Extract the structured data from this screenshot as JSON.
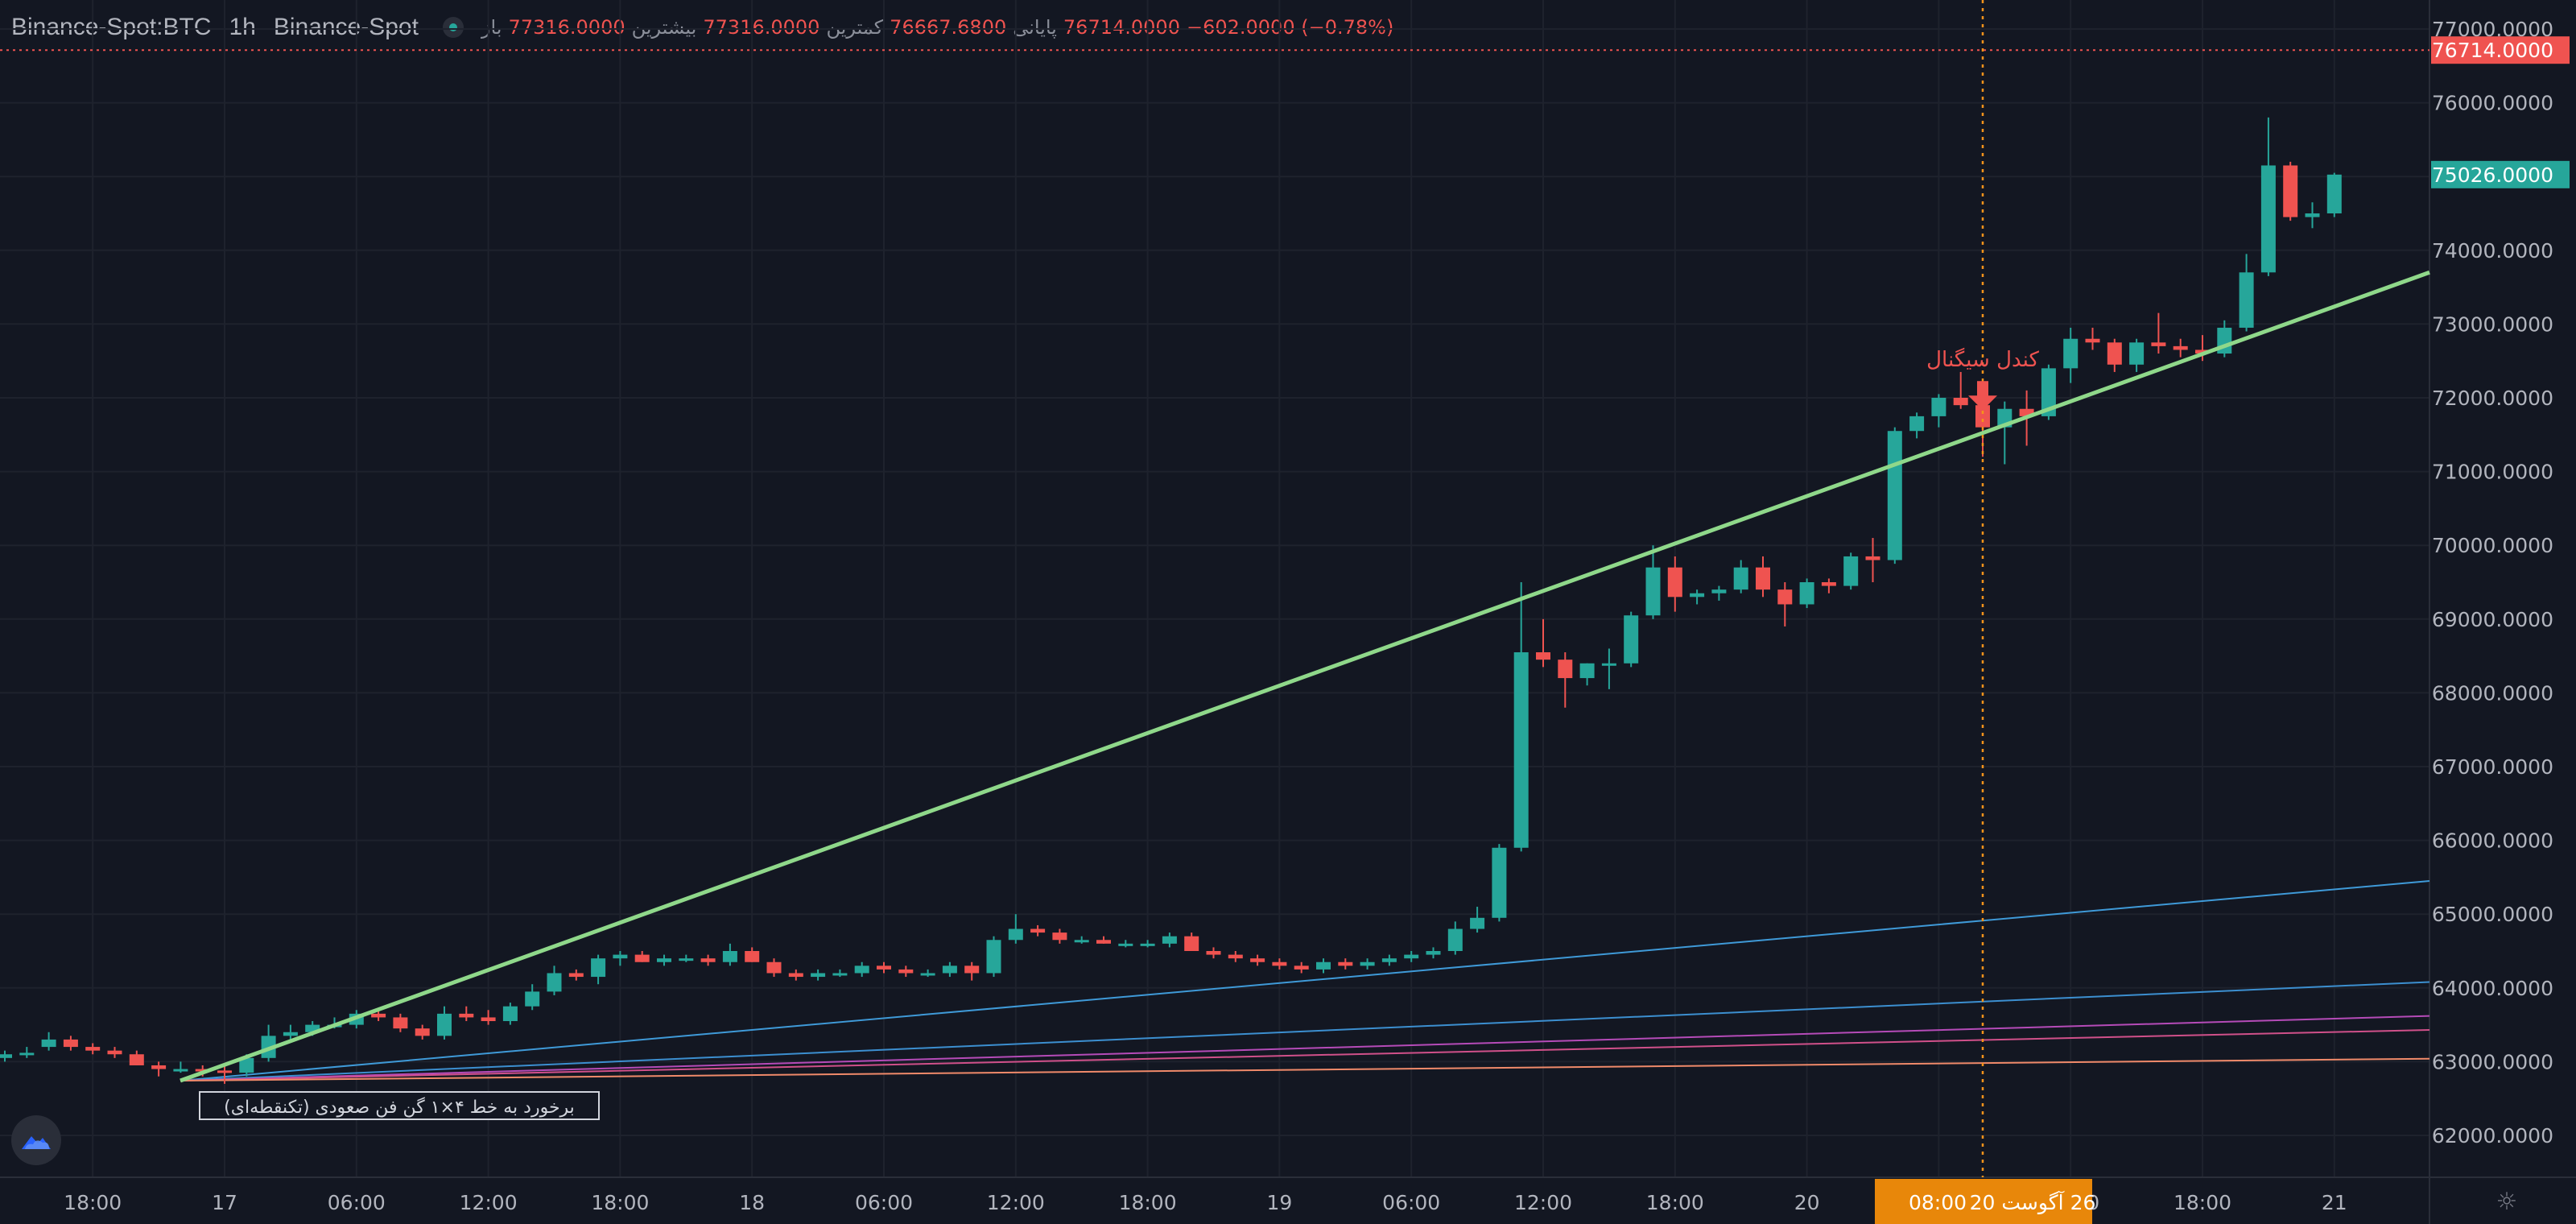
{
  "header": {
    "symbol": "Binance-Spot:BTC",
    "timeframe": "1h",
    "exchange": "Binance-Spot",
    "open_label": "باز",
    "open_value": "77316.0000",
    "high_label": "بیشترین",
    "high_value": "77316.0000",
    "low_label": "کمترین",
    "low_value": "76667.6800",
    "close_label": "پایانی",
    "close_value": "76714.0000",
    "change": "−602.0000 (−0.78%)"
  },
  "colors": {
    "background": "#131722",
    "grid": "#1e222d",
    "up": "#26a69a",
    "down": "#ef5350",
    "trendline": "#8fd88a",
    "signal_line": "#f7931a",
    "fan_lines": [
      "#3f9ad8",
      "#3c8fd0",
      "#b54bb8",
      "#d0508a",
      "#f08a6a"
    ]
  },
  "chart_data": {
    "type": "candlestick",
    "y_range": [
      61600,
      77400
    ],
    "y_ticks": [
      "77000.0000",
      "76000.0000",
      "75000.0000",
      "74000.0000",
      "73000.0000",
      "72000.0000",
      "71000.0000",
      "70000.0000",
      "69000.0000",
      "68000.0000",
      "67000.0000",
      "66000.0000",
      "65000.0000",
      "64000.0000",
      "63000.0000",
      "62000.0000"
    ],
    "x_ticks": [
      "18:00",
      "17",
      "06:00",
      "12:00",
      "18:00",
      "18",
      "06:00",
      "12:00",
      "18:00",
      "19",
      "06:00",
      "12:00",
      "18:00",
      "20",
      "06:00",
      "12:00",
      "18:00",
      "21"
    ],
    "x_tick_candle_index": [
      4,
      10,
      16,
      22,
      28,
      34,
      40,
      46,
      52,
      58,
      64,
      70,
      76,
      82,
      88,
      94,
      100,
      106
    ],
    "crosshair_label": "26 آگوست 20",
    "crosshair_time": "08:00",
    "crosshair_candle_index": 90,
    "last_price_label": "76714.0000",
    "last_price": 76714,
    "current_price_label": "75026.0000",
    "current_price": 75026,
    "candles": [
      [
        63050,
        63150,
        63000,
        63100
      ],
      [
        63100,
        63200,
        63050,
        63120
      ],
      [
        63200,
        63400,
        63150,
        63300
      ],
      [
        63300,
        63350,
        63150,
        63200
      ],
      [
        63200,
        63250,
        63100,
        63150
      ],
      [
        63150,
        63200,
        63050,
        63100
      ],
      [
        63100,
        63150,
        62950,
        62950
      ],
      [
        62950,
        63000,
        62800,
        62900
      ],
      [
        62900,
        63000,
        62850,
        62900
      ],
      [
        62900,
        62950,
        62800,
        62880
      ],
      [
        62880,
        62950,
        62700,
        62850
      ],
      [
        62850,
        63100,
        62800,
        63050
      ],
      [
        63050,
        63500,
        63000,
        63350
      ],
      [
        63350,
        63500,
        63300,
        63400
      ],
      [
        63400,
        63550,
        63350,
        63500
      ],
      [
        63500,
        63600,
        63450,
        63500
      ],
      [
        63500,
        63700,
        63450,
        63650
      ],
      [
        63650,
        63700,
        63550,
        63600
      ],
      [
        63600,
        63650,
        63400,
        63450
      ],
      [
        63450,
        63500,
        63300,
        63350
      ],
      [
        63350,
        63750,
        63300,
        63650
      ],
      [
        63650,
        63750,
        63550,
        63600
      ],
      [
        63600,
        63700,
        63500,
        63550
      ],
      [
        63550,
        63800,
        63500,
        63750
      ],
      [
        63750,
        64050,
        63700,
        63950
      ],
      [
        63950,
        64300,
        63900,
        64200
      ],
      [
        64200,
        64250,
        64100,
        64150
      ],
      [
        64150,
        64450,
        64050,
        64400
      ],
      [
        64400,
        64500,
        64300,
        64450
      ],
      [
        64450,
        64500,
        64350,
        64350
      ],
      [
        64350,
        64450,
        64300,
        64400
      ],
      [
        64400,
        64450,
        64350,
        64400
      ],
      [
        64400,
        64450,
        64300,
        64350
      ],
      [
        64350,
        64600,
        64300,
        64500
      ],
      [
        64500,
        64550,
        64350,
        64350
      ],
      [
        64350,
        64400,
        64150,
        64200
      ],
      [
        64200,
        64250,
        64100,
        64150
      ],
      [
        64150,
        64250,
        64100,
        64200
      ],
      [
        64200,
        64250,
        64150,
        64200
      ],
      [
        64200,
        64350,
        64150,
        64300
      ],
      [
        64300,
        64350,
        64200,
        64250
      ],
      [
        64250,
        64300,
        64150,
        64200
      ],
      [
        64200,
        64250,
        64150,
        64200
      ],
      [
        64200,
        64350,
        64150,
        64300
      ],
      [
        64300,
        64350,
        64100,
        64200
      ],
      [
        64200,
        64700,
        64150,
        64650
      ],
      [
        64650,
        65000,
        64600,
        64800
      ],
      [
        64800,
        64850,
        64700,
        64750
      ],
      [
        64750,
        64800,
        64600,
        64650
      ],
      [
        64650,
        64700,
        64600,
        64650
      ],
      [
        64650,
        64700,
        64600,
        64600
      ],
      [
        64600,
        64650,
        64550,
        64600
      ],
      [
        64600,
        64650,
        64550,
        64600
      ],
      [
        64600,
        64750,
        64550,
        64700
      ],
      [
        64700,
        64750,
        64500,
        64500
      ],
      [
        64500,
        64550,
        64400,
        64450
      ],
      [
        64450,
        64500,
        64350,
        64400
      ],
      [
        64400,
        64450,
        64300,
        64350
      ],
      [
        64350,
        64400,
        64250,
        64300
      ],
      [
        64300,
        64350,
        64200,
        64250
      ],
      [
        64250,
        64400,
        64200,
        64350
      ],
      [
        64350,
        64400,
        64250,
        64300
      ],
      [
        64300,
        64400,
        64250,
        64350
      ],
      [
        64350,
        64450,
        64300,
        64400
      ],
      [
        64400,
        64500,
        64350,
        64450
      ],
      [
        64450,
        64550,
        64400,
        64500
      ],
      [
        64500,
        64900,
        64450,
        64800
      ],
      [
        64800,
        65100,
        64750,
        64950
      ],
      [
        64950,
        65950,
        64900,
        65900
      ],
      [
        65900,
        69500,
        65850,
        68550
      ],
      [
        68550,
        69000,
        68350,
        68450
      ],
      [
        68450,
        68550,
        67800,
        68200
      ],
      [
        68200,
        68400,
        68100,
        68400
      ],
      [
        68400,
        68600,
        68050,
        68400
      ],
      [
        68400,
        69100,
        68350,
        69050
      ],
      [
        69050,
        70000,
        69000,
        69700
      ],
      [
        69700,
        69850,
        69100,
        69300
      ],
      [
        69300,
        69400,
        69200,
        69350
      ],
      [
        69350,
        69450,
        69250,
        69400
      ],
      [
        69400,
        69800,
        69350,
        69700
      ],
      [
        69700,
        69850,
        69300,
        69400
      ],
      [
        69400,
        69500,
        68900,
        69200
      ],
      [
        69200,
        69550,
        69150,
        69500
      ],
      [
        69500,
        69550,
        69350,
        69450
      ],
      [
        69450,
        69900,
        69400,
        69850
      ],
      [
        69850,
        70100,
        69500,
        69800
      ],
      [
        69800,
        71600,
        69750,
        71550
      ],
      [
        71550,
        71800,
        71450,
        71750
      ],
      [
        71750,
        72050,
        71600,
        72000
      ],
      [
        72000,
        72350,
        71850,
        71900
      ],
      [
        71900,
        72000,
        71200,
        71600
      ],
      [
        71600,
        71950,
        71100,
        71850
      ],
      [
        71850,
        72100,
        71350,
        71750
      ],
      [
        71750,
        72450,
        71700,
        72400
      ],
      [
        72400,
        72950,
        72200,
        72800
      ],
      [
        72800,
        72950,
        72650,
        72750
      ],
      [
        72750,
        72800,
        72350,
        72450
      ],
      [
        72450,
        72800,
        72350,
        72750
      ],
      [
        72750,
        73150,
        72600,
        72700
      ],
      [
        72700,
        72800,
        72550,
        72650
      ],
      [
        72650,
        72850,
        72500,
        72600
      ],
      [
        72600,
        73050,
        72550,
        72950
      ],
      [
        72950,
        73950,
        72900,
        73700
      ],
      [
        73700,
        75800,
        73650,
        75150
      ],
      [
        75150,
        75200,
        74400,
        74450
      ],
      [
        74450,
        74650,
        74300,
        74500
      ],
      [
        74500,
        75050,
        74450,
        75026
      ]
    ]
  },
  "drawings": {
    "signal_label": "کندل سیگنال",
    "touch_label": "برخورد به خط ۴×۱ گن فن صعودی (تکنقطه‌ای)"
  },
  "icons": {
    "logo": "mountain-cloud-icon",
    "settings": "gear-icon"
  }
}
